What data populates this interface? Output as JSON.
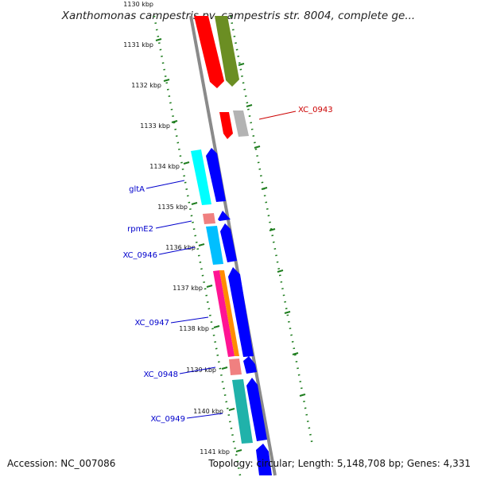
{
  "title": "Xanthomonas campestris pv. campestris str. 8004, complete ge...",
  "footer": {
    "accession": "Accession: NC_007086",
    "topology": "Topology: circular; Length: 5,148,708 bp; Genes: 4,331"
  },
  "colors": {
    "backbone": "#888888",
    "tick": "#1e7d1e",
    "label_blue": "#0000cc",
    "label_red": "#cc0000"
  },
  "ticks": [
    {
      "label": "1130 kbp"
    },
    {
      "label": "1131 kbp"
    },
    {
      "label": "1132 kbp"
    },
    {
      "label": "1133 kbp"
    },
    {
      "label": "1134 kbp"
    },
    {
      "label": "1135 kbp"
    },
    {
      "label": "1136 kbp"
    },
    {
      "label": "1137 kbp"
    },
    {
      "label": "1138 kbp"
    },
    {
      "label": "1139 kbp"
    },
    {
      "label": "1140 kbp"
    },
    {
      "label": "1141 kbp"
    }
  ],
  "gene_labels": [
    {
      "name": "XC_0943",
      "color": "#cc0000"
    },
    {
      "name": "gltA",
      "color": "#0000cc"
    },
    {
      "name": "rpmE2",
      "color": "#0000cc"
    },
    {
      "name": "XC_0946",
      "color": "#0000cc"
    },
    {
      "name": "XC_0947",
      "color": "#0000cc"
    },
    {
      "name": "XC_0948",
      "color": "#0000cc"
    },
    {
      "name": "XC_0949",
      "color": "#0000cc"
    }
  ]
}
